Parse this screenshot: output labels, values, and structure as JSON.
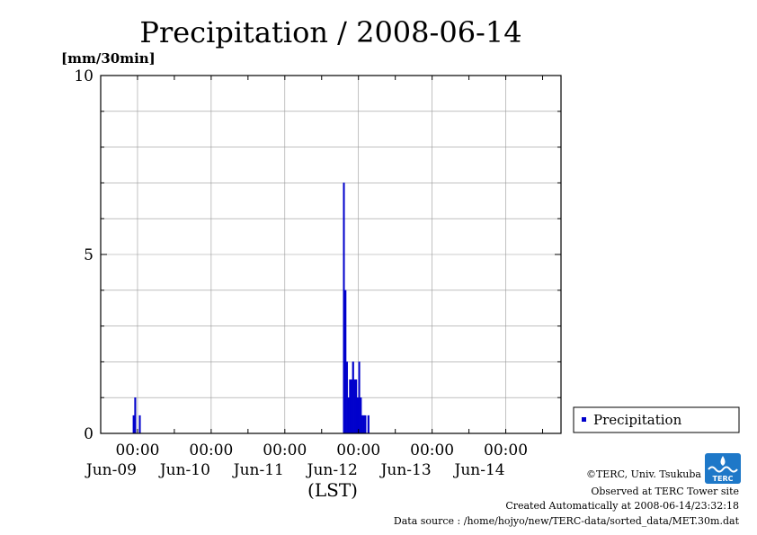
{
  "chart_data": {
    "type": "bar",
    "title": "Precipitation / 2008-06-14",
    "ylabel": "[mm/30min]",
    "xlabel": "(LST)",
    "ylim": [
      0,
      10
    ],
    "yticks": [
      0,
      5,
      10
    ],
    "xlim": [
      "2008-06-08 12:00",
      "2008-06-14 18:00"
    ],
    "xticks": [
      {
        "time": "2008-06-09 00:00",
        "label": "00:00",
        "date": "Jun-09"
      },
      {
        "time": "2008-06-10 00:00",
        "label": "00:00",
        "date": "Jun-10"
      },
      {
        "time": "2008-06-11 00:00",
        "label": "00:00",
        "date": "Jun-11"
      },
      {
        "time": "2008-06-12 00:00",
        "label": "00:00",
        "date": "Jun-12"
      },
      {
        "time": "2008-06-13 00:00",
        "label": "00:00",
        "date": "Jun-13"
      },
      {
        "time": "2008-06-14 00:00",
        "label": "00:00",
        "date": "Jun-14"
      }
    ],
    "grid": true,
    "legend_position": "right",
    "series": [
      {
        "name": "Precipitation",
        "color": "#0000cc",
        "points": [
          {
            "x": "2008-06-08 22:30",
            "y": 0.5
          },
          {
            "x": "2008-06-08 23:00",
            "y": 1.0
          },
          {
            "x": "2008-06-09 00:30",
            "y": 0.5
          },
          {
            "x": "2008-06-11 19:00",
            "y": 7.0
          },
          {
            "x": "2008-06-11 19:30",
            "y": 4.0
          },
          {
            "x": "2008-06-11 20:00",
            "y": 2.0
          },
          {
            "x": "2008-06-11 20:30",
            "y": 1.0
          },
          {
            "x": "2008-06-11 21:00",
            "y": 1.5
          },
          {
            "x": "2008-06-11 21:30",
            "y": 1.5
          },
          {
            "x": "2008-06-11 22:00",
            "y": 2.0
          },
          {
            "x": "2008-06-11 22:30",
            "y": 1.5
          },
          {
            "x": "2008-06-11 23:00",
            "y": 1.5
          },
          {
            "x": "2008-06-11 23:30",
            "y": 1.0
          },
          {
            "x": "2008-06-12 00:00",
            "y": 2.0
          },
          {
            "x": "2008-06-12 00:30",
            "y": 1.0
          },
          {
            "x": "2008-06-12 01:00",
            "y": 0.5
          },
          {
            "x": "2008-06-12 01:30",
            "y": 0.5
          },
          {
            "x": "2008-06-12 02:00",
            "y": 0.5
          },
          {
            "x": "2008-06-12 03:00",
            "y": 0.5
          }
        ]
      }
    ]
  },
  "legend": {
    "label": "Precipitation",
    "color": "#0000cc"
  },
  "credits": {
    "copyright": "©TERC, Univ. Tsukuba",
    "observed": "Observed at TERC Tower site",
    "created": "Created Automatically at 2008-06-14/23:32:18",
    "source": "Data source : /home/hojyo/new/TERC-data/sorted_data/MET.30m.dat",
    "logo_text": "TERC",
    "logo_color": "#1e78c8"
  }
}
